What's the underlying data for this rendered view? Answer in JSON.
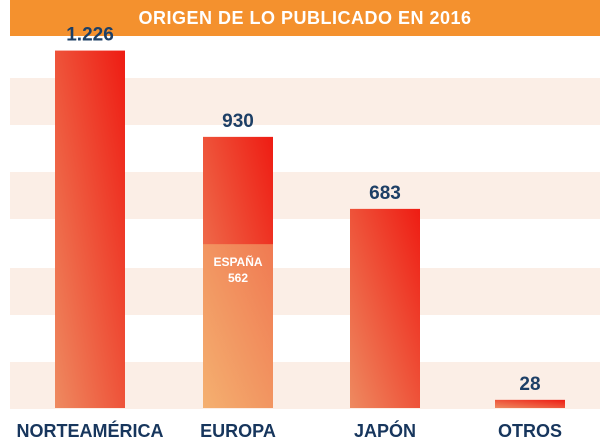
{
  "title": "ORIGEN DE LO PUBLICADO EN 2016",
  "chart_data": {
    "type": "bar",
    "title": "ORIGEN DE LO PUBLICADO EN 2016",
    "categories": [
      "NORTEAMÉRICA",
      "EUROPA",
      "JAPÓN",
      "OTROS"
    ],
    "values": [
      1226,
      930,
      683,
      28
    ],
    "value_labels": [
      "1.226",
      "930",
      "683",
      "28"
    ],
    "sub_segment": {
      "category": "EUROPA",
      "label": "ESPAÑA",
      "value": 562,
      "value_label": "562"
    },
    "ylim": [
      0,
      1300
    ],
    "grid": "horizontal bands",
    "xlabel": "",
    "ylabel": "",
    "colors": {
      "bar_light": "#ee8a60",
      "bar_dark": "#ee1c13",
      "sub_light": "#f4b070",
      "sub_dark": "#f07a52",
      "band": "#fbeee6",
      "value_text": "#1d3f66",
      "category_text": "#17365d",
      "title_bg": "#f4912e"
    }
  }
}
